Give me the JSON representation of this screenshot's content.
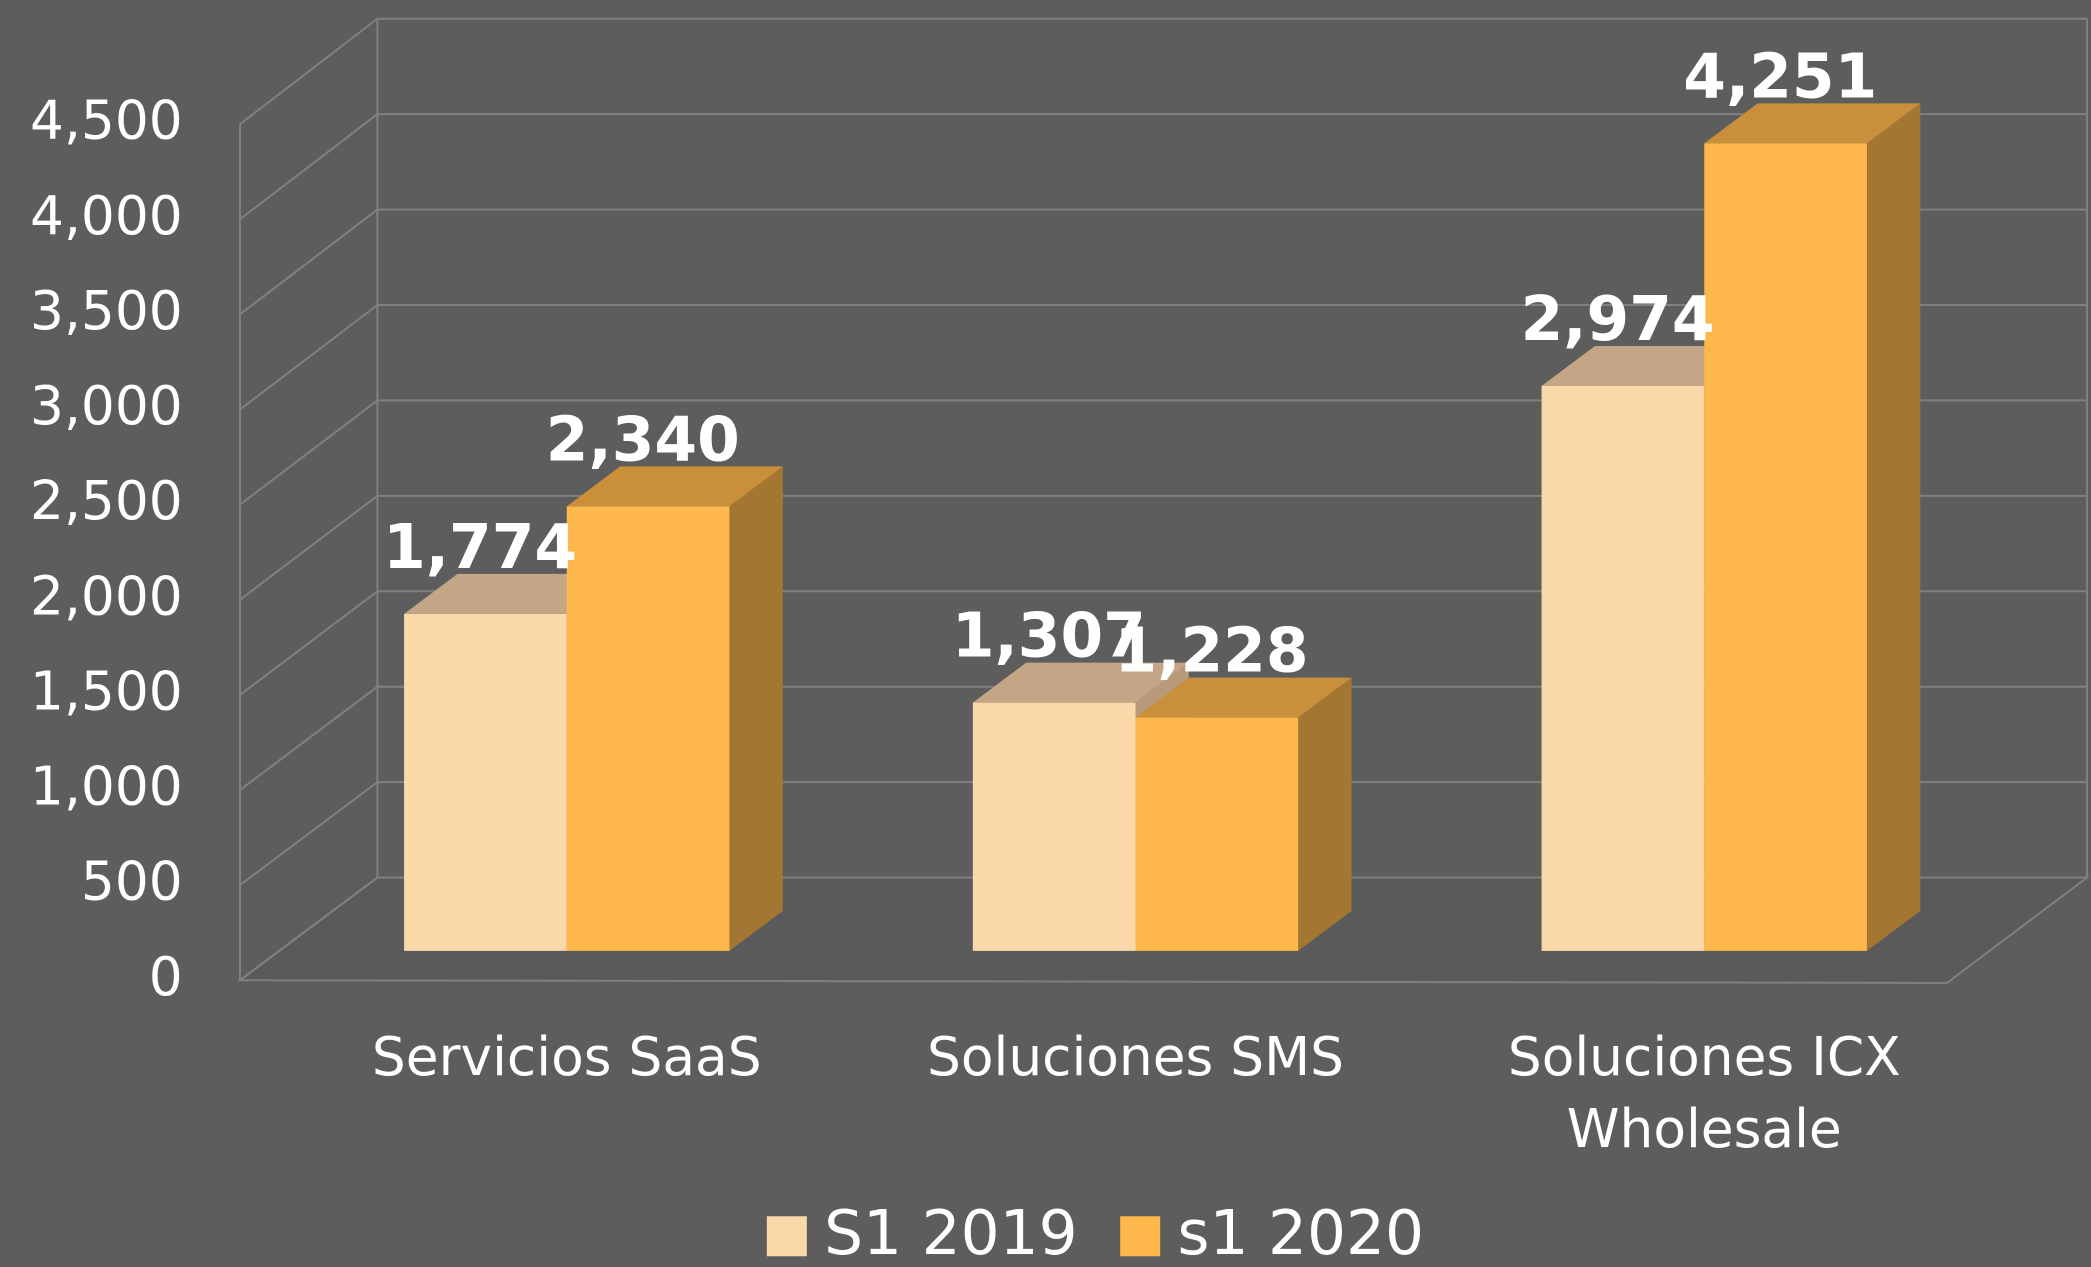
{
  "chart_data": {
    "type": "bar3d",
    "categories": [
      "Servicios SaaS",
      "Soluciones SMS",
      "Soluciones ICX Wholesale"
    ],
    "series": [
      {
        "name": "S1 2019",
        "color": "#fbd8aa",
        "top_color": "#c4a585",
        "side_color": "#b89a7a",
        "values": [
          1774,
          1307,
          2974
        ],
        "value_labels": [
          "1,774",
          "1,307",
          "2,974"
        ]
      },
      {
        "name": "s1 2020",
        "color": "#fdb74b",
        "top_color": "#c98f3a",
        "side_color": "#a37631",
        "values": [
          2340,
          1228,
          4251
        ],
        "value_labels": [
          "2,340",
          "1,228",
          "4,251"
        ]
      }
    ],
    "ylim": [
      0,
      4500
    ],
    "yticks": [
      0,
      500,
      {
        "value": 1000,
        "label": "1,000"
      },
      {
        "value": 1500,
        "label": "1,500"
      },
      {
        "value": 2000,
        "label": "2,000"
      },
      {
        "value": 2500,
        "label": "2,500"
      },
      {
        "value": 3000,
        "label": "3,000"
      },
      {
        "value": 3500,
        "label": "3,500"
      },
      {
        "value": 4000,
        "label": "4,000"
      },
      {
        "value": 4500,
        "label": "4,500"
      }
    ],
    "grid": true,
    "legend": "bottom"
  }
}
